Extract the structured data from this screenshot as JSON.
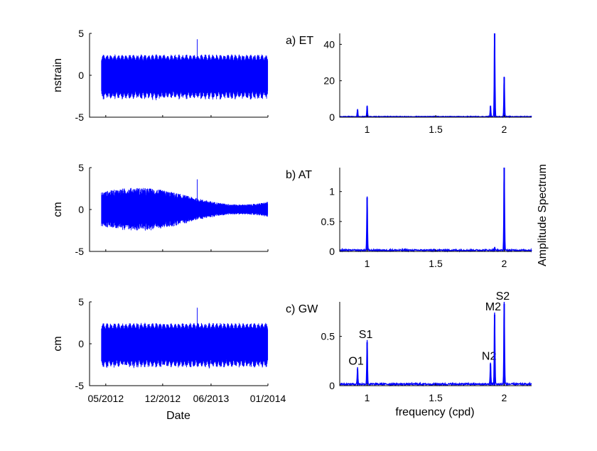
{
  "labels": {
    "date_xlabel": "Date",
    "freq_xlabel": "frequency (cpd)",
    "spectrum_ylabel": "Amplitude Spectrum"
  },
  "colors": {
    "series": "#0000ff"
  },
  "chart_data": [
    {
      "type": "line",
      "id": "ts-et",
      "ylabel": "nstrain",
      "x_ticks": [
        "05/2012",
        "12/2012",
        "06/2013",
        "01/2014"
      ],
      "xlim": [
        "2012-03-01",
        "2014-01-01"
      ],
      "data_range": [
        "2012-04-15",
        "2013-12-31"
      ],
      "ylim": [
        -5,
        5
      ],
      "y_ticks": [
        -5,
        0,
        5
      ],
      "envelope": {
        "upper": 2.5,
        "lower": -3.0,
        "spike_max": 4.3
      }
    },
    {
      "type": "line",
      "id": "ts-at",
      "ylabel": "cm",
      "x_ticks": [
        "05/2012",
        "12/2012",
        "06/2013",
        "01/2014"
      ],
      "xlim": [
        "2012-03-01",
        "2014-01-01"
      ],
      "data_range": [
        "2012-04-15",
        "2013-12-31"
      ],
      "ylim": [
        -5,
        5
      ],
      "y_ticks": [
        -5,
        0,
        5
      ],
      "envelope": {
        "upper": 2.5,
        "lower": -2.5,
        "spike_max": 3.6
      }
    },
    {
      "type": "line",
      "id": "ts-gw",
      "ylabel": "cm",
      "x_ticks": [
        "05/2012",
        "12/2012",
        "06/2013",
        "01/2014"
      ],
      "xlim": [
        "2012-03-01",
        "2014-01-01"
      ],
      "data_range": [
        "2012-04-15",
        "2013-12-31"
      ],
      "ylim": [
        -5,
        5
      ],
      "y_ticks": [
        -5,
        0,
        5
      ],
      "envelope": {
        "upper": 2.5,
        "lower": -3.0,
        "spike_max": 4.3
      }
    },
    {
      "type": "line",
      "id": "spec-et",
      "title": "a) ET",
      "xlim": [
        0.8,
        2.2
      ],
      "x_ticks": [
        1,
        1.5,
        2
      ],
      "ylim": [
        0,
        46
      ],
      "y_ticks": [
        0,
        20,
        40
      ],
      "baseline": 0.3,
      "peaks": [
        {
          "freq": 0.93,
          "amp": 4
        },
        {
          "freq": 1.0,
          "amp": 6
        },
        {
          "freq": 1.9,
          "amp": 6
        },
        {
          "freq": 1.93,
          "amp": 46
        },
        {
          "freq": 2.0,
          "amp": 22
        }
      ]
    },
    {
      "type": "line",
      "id": "spec-at",
      "title": "b) AT",
      "xlim": [
        0.8,
        2.2
      ],
      "x_ticks": [
        1,
        1.5,
        2
      ],
      "ylim": [
        0,
        1.4
      ],
      "y_ticks": [
        0,
        0.5,
        1
      ],
      "baseline": 0.02,
      "peaks": [
        {
          "freq": 1.0,
          "amp": 0.9
        },
        {
          "freq": 1.93,
          "amp": 0.05
        },
        {
          "freq": 2.0,
          "amp": 1.42
        }
      ]
    },
    {
      "type": "line",
      "id": "spec-gw",
      "title": "c) GW",
      "xlim": [
        0.8,
        2.2
      ],
      "x_ticks": [
        1,
        1.5,
        2
      ],
      "ylim": [
        0,
        0.85
      ],
      "y_ticks": [
        0,
        0.5
      ],
      "baseline": 0.015,
      "peaks": [
        {
          "freq": 0.93,
          "amp": 0.17,
          "label": "O1"
        },
        {
          "freq": 1.0,
          "amp": 0.44,
          "label": "S1"
        },
        {
          "freq": 1.9,
          "amp": 0.22,
          "label": "N2"
        },
        {
          "freq": 1.93,
          "amp": 0.72,
          "label": "M2"
        },
        {
          "freq": 2.0,
          "amp": 0.83,
          "label": "S2"
        }
      ]
    }
  ]
}
